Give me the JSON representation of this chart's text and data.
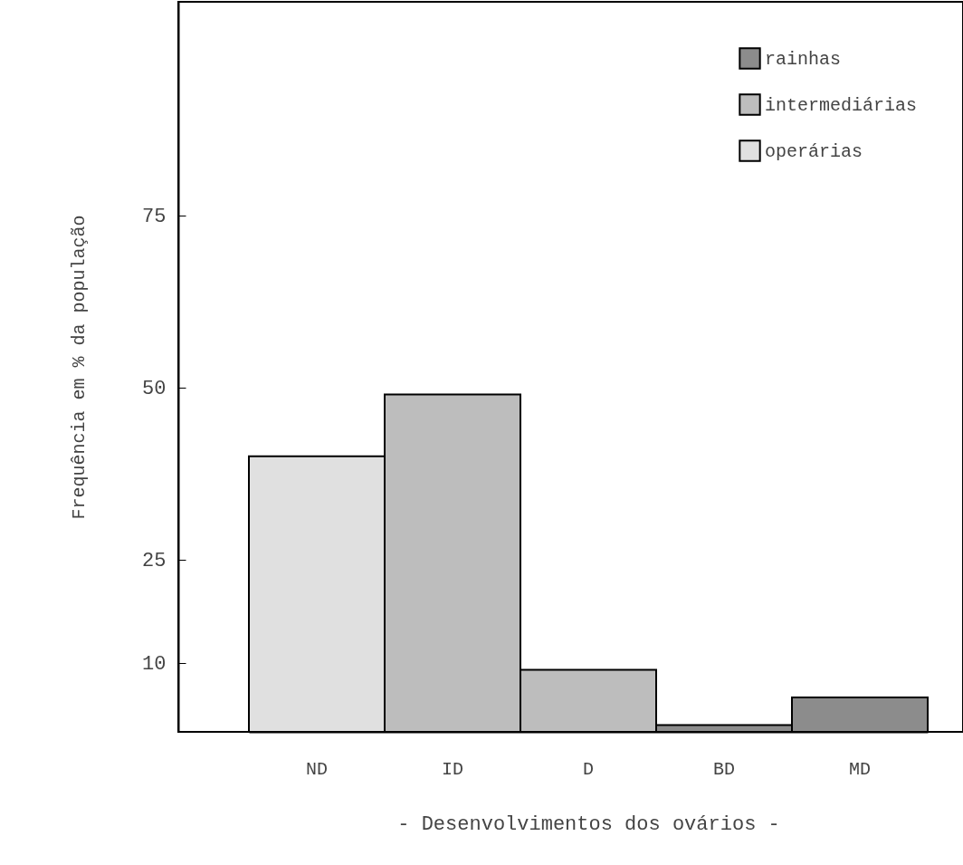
{
  "chart_data": {
    "type": "bar",
    "xlabel": "- Desenvolvimentos dos ovários -",
    "ylabel": "Frequência em % da população",
    "categories": [
      "ND",
      "ID",
      "D",
      "BD",
      "MD"
    ],
    "series": [
      {
        "name": "rainhas",
        "color": "#8c8c8c",
        "values": [
          null,
          null,
          null,
          1,
          5
        ]
      },
      {
        "name": "intermediárias",
        "color": "#bdbdbd",
        "values": [
          null,
          49,
          9,
          null,
          null
        ]
      },
      {
        "name": "operárias",
        "color": "#e0e0e0",
        "values": [
          40,
          null,
          null,
          null,
          null
        ]
      }
    ],
    "ylim": [
      0,
      106
    ],
    "yticks": [
      10,
      25,
      50,
      75
    ],
    "grid": false,
    "legend": "top right"
  }
}
